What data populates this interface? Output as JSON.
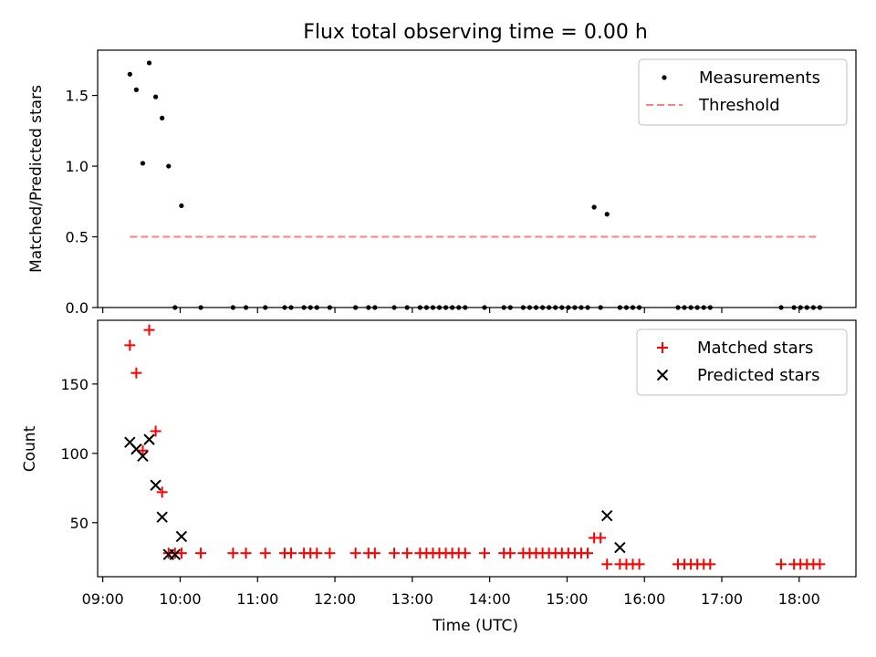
{
  "figure": {
    "title": "Flux total observing time = 0.00 h"
  },
  "chart_data": [
    {
      "type": "scatter",
      "title": "Flux total observing time = 0.00 h",
      "xlabel": "",
      "ylabel": "Matched/Predicted stars",
      "xlim": [
        "08:56",
        "18:44"
      ],
      "ylim": [
        0,
        1.82
      ],
      "yticks": [
        0.0,
        0.5,
        1.0,
        1.5
      ],
      "ytick_labels": [
        "0.0",
        "0.5",
        "1.0",
        "1.5"
      ],
      "legend_position": "top-right",
      "series": [
        {
          "name": "Measurements",
          "kind": "points",
          "color": "#000000",
          "x": [
            "09:21",
            "09:26",
            "09:31",
            "09:36",
            "09:41",
            "09:46",
            "09:51",
            "09:56",
            "10:01",
            "10:16",
            "10:41",
            "10:51",
            "11:06",
            "11:21",
            "11:26",
            "11:36",
            "11:41",
            "11:46",
            "11:56",
            "12:16",
            "12:26",
            "12:31",
            "12:46",
            "12:56",
            "13:06",
            "13:11",
            "13:16",
            "13:21",
            "13:26",
            "13:31",
            "13:36",
            "13:41",
            "13:56",
            "14:11",
            "14:16",
            "14:26",
            "14:31",
            "14:36",
            "14:41",
            "14:46",
            "14:51",
            "14:56",
            "15:01",
            "15:06",
            "15:11",
            "15:16",
            "15:21",
            "15:26",
            "15:31",
            "15:41",
            "15:46",
            "15:51",
            "15:56",
            "16:26",
            "16:31",
            "16:36",
            "16:41",
            "16:46",
            "16:51",
            "17:46",
            "17:56",
            "18:01",
            "18:06",
            "18:11",
            "18:16"
          ],
          "y": [
            1.65,
            1.54,
            1.02,
            1.73,
            1.49,
            1.34,
            1.0,
            0.0,
            0.72,
            0.0,
            0.0,
            0.0,
            0.0,
            0.0,
            0.0,
            0.0,
            0.0,
            0.0,
            0.0,
            0.0,
            0.0,
            0.0,
            0.0,
            0.0,
            0.0,
            0.0,
            0.0,
            0.0,
            0.0,
            0.0,
            0.0,
            0.0,
            0.0,
            0.0,
            0.0,
            0.0,
            0.0,
            0.0,
            0.0,
            0.0,
            0.0,
            0.0,
            0.0,
            0.0,
            0.0,
            0.0,
            0.71,
            0.0,
            0.66,
            0.0,
            0.0,
            0.0,
            0.0,
            0.0,
            0.0,
            0.0,
            0.0,
            0.0,
            0.0,
            0.0,
            0.0,
            0.0,
            0.0,
            0.0,
            0.0
          ]
        },
        {
          "name": "Threshold",
          "kind": "dashed-line",
          "color": "#ff7f7f",
          "x": [
            "09:21",
            "18:16"
          ],
          "y": [
            0.5,
            0.5
          ]
        }
      ]
    },
    {
      "type": "scatter",
      "title": "",
      "xlabel": "Time (UTC)",
      "ylabel": "Count",
      "xlim": [
        "08:56",
        "18:44"
      ],
      "ylim": [
        11,
        196
      ],
      "yticks": [
        50,
        100,
        150
      ],
      "ytick_labels": [
        "50",
        "100",
        "150"
      ],
      "xticks": [
        "09:00",
        "10:00",
        "11:00",
        "12:00",
        "13:00",
        "14:00",
        "15:00",
        "16:00",
        "17:00",
        "18:00"
      ],
      "legend_position": "top-right",
      "series": [
        {
          "name": "Matched stars",
          "kind": "plus",
          "color": "#ff0000",
          "x": [
            "09:21",
            "09:26",
            "09:31",
            "09:36",
            "09:41",
            "09:46",
            "09:51",
            "09:56",
            "10:01",
            "10:16",
            "10:41",
            "10:51",
            "11:06",
            "11:21",
            "11:26",
            "11:36",
            "11:41",
            "11:46",
            "11:56",
            "12:16",
            "12:26",
            "12:31",
            "12:46",
            "12:56",
            "13:06",
            "13:11",
            "13:16",
            "13:21",
            "13:26",
            "13:31",
            "13:36",
            "13:41",
            "13:56",
            "14:11",
            "14:16",
            "14:26",
            "14:31",
            "14:36",
            "14:41",
            "14:46",
            "14:51",
            "14:56",
            "15:01",
            "15:06",
            "15:11",
            "15:16",
            "15:21",
            "15:26",
            "15:31",
            "15:41",
            "15:46",
            "15:51",
            "15:56",
            "16:26",
            "16:31",
            "16:36",
            "16:41",
            "16:46",
            "16:51",
            "17:46",
            "17:56",
            "18:01",
            "18:06",
            "18:11",
            "18:16"
          ],
          "y": [
            178,
            158,
            102,
            189,
            116,
            72,
            28,
            28,
            28,
            28,
            28,
            28,
            28,
            28,
            28,
            28,
            28,
            28,
            28,
            28,
            28,
            28,
            28,
            28,
            28,
            28,
            28,
            28,
            28,
            28,
            28,
            28,
            28,
            28,
            28,
            28,
            28,
            28,
            28,
            28,
            28,
            28,
            28,
            28,
            28,
            28,
            39,
            39,
            20,
            20,
            20,
            20,
            20,
            20,
            20,
            20,
            20,
            20,
            20,
            20,
            20,
            20,
            20,
            20,
            20
          ]
        },
        {
          "name": "Predicted stars",
          "kind": "cross",
          "color": "#000000",
          "x": [
            "09:21",
            "09:26",
            "09:31",
            "09:36",
            "09:41",
            "09:46",
            "09:51",
            "09:56",
            "10:01",
            "15:31",
            "15:41"
          ],
          "y": [
            108,
            103,
            98,
            110,
            77,
            54,
            27,
            27,
            40,
            55,
            32
          ]
        }
      ]
    }
  ]
}
